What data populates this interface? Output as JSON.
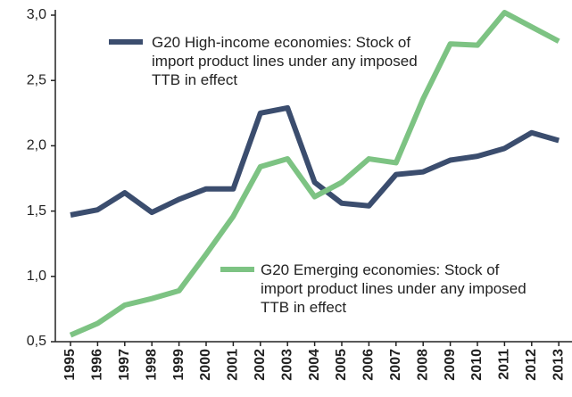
{
  "chart_data": {
    "type": "line",
    "categories": [
      "1995",
      "1996",
      "1997",
      "1998",
      "1999",
      "2000",
      "2001",
      "2002",
      "2003",
      "2004",
      "2005",
      "2006",
      "2007",
      "2008",
      "2009",
      "2010",
      "2011",
      "2012",
      "2013"
    ],
    "series": [
      {
        "name": "G20 High-income economies: Stock of import product lines under any imposed TTB in effect",
        "color": "#3b4d6e",
        "values": [
          1.47,
          1.51,
          1.64,
          1.49,
          1.59,
          1.67,
          1.67,
          2.25,
          2.29,
          1.72,
          1.56,
          1.54,
          1.78,
          1.8,
          1.89,
          1.92,
          1.98,
          2.1,
          2.04
        ]
      },
      {
        "name": "G20 Emerging economies: Stock of import product lines under any imposed TTB in effect",
        "color": "#7dc383",
        "values": [
          0.55,
          0.64,
          0.78,
          0.83,
          0.89,
          1.17,
          1.46,
          1.84,
          1.9,
          1.61,
          1.72,
          1.9,
          1.87,
          2.36,
          2.78,
          2.77,
          3.02,
          2.91,
          2.8
        ]
      }
    ],
    "ylim": [
      0.5,
      3.0
    ],
    "yticks": [
      {
        "value": 0.5,
        "label": "0,5"
      },
      {
        "value": 1.0,
        "label": "1,0"
      },
      {
        "value": 1.5,
        "label": "1,5"
      },
      {
        "value": 2.0,
        "label": "2,0"
      },
      {
        "value": 2.5,
        "label": "2,5"
      },
      {
        "value": 3.0,
        "label": "3,0"
      }
    ],
    "grid": false
  }
}
